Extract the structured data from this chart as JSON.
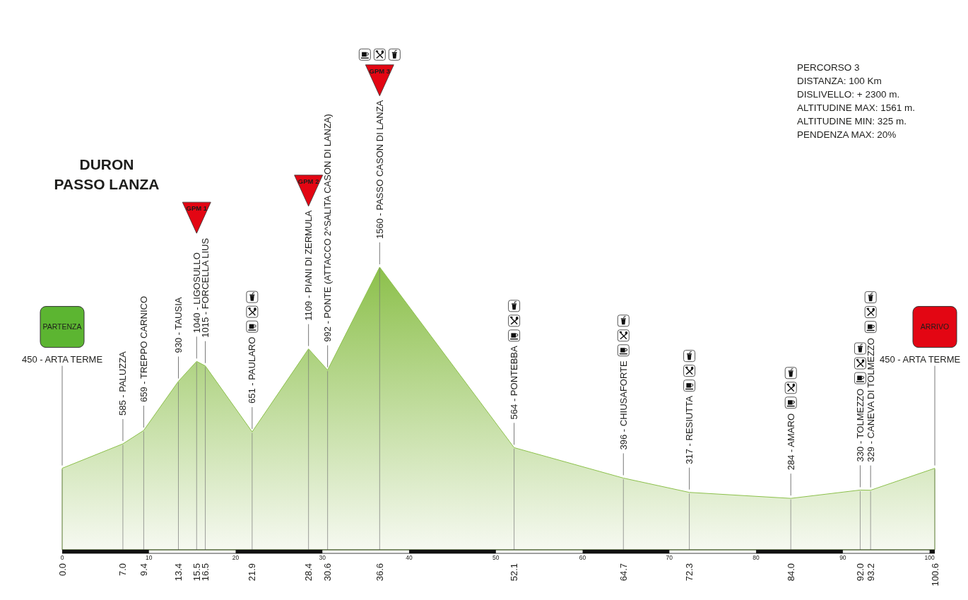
{
  "chart_data": [
    {
      "type": "area",
      "title": "DURON",
      "subtitle": "PASSO LANZA",
      "x": [
        0,
        7,
        9.4,
        13.4,
        15.5,
        16.5,
        21.9,
        28.4,
        30.6,
        36.6,
        52.1,
        64.7,
        72.3,
        84,
        92,
        93.2,
        100.6
      ],
      "series": [
        {
          "color": "#8cc04b",
          "values": [
            450,
            585,
            659,
            930,
            1040,
            1015,
            651,
            1109,
            992,
            1560,
            564,
            396,
            317,
            284,
            330,
            329,
            450
          ],
          "value_labels": [
            "450 - ARTA TERME",
            "585 - PALUZZA",
            "659 - TREPPO CARNICO",
            "930 - TAUSIA",
            "1040 - LIGOSULLO",
            "1015 - FORCELLA LIUS",
            "651 - PAULARO",
            "1109 - PIANI DI ZERMULA",
            "992 - PONTE (ATTACCO 2^SALITA CASON DI LANZA)",
            "1560 - PASSO CASON DI LANZA",
            "564 - PONTEBBA",
            "396 - CHIUSAFORTE",
            "317 - RESIUTTA",
            "284 - AMARO",
            "330 - TOLMEZZO",
            "329 - CANEVA DI TOLMEZZO",
            "450 - ARTA TERME"
          ]
        }
      ],
      "xlim": [
        0,
        100.6
      ],
      "xticks": [
        0,
        10,
        20,
        30,
        40,
        50,
        60,
        70,
        80,
        90,
        100
      ],
      "tick_labels": "x",
      "ref_lines": [
        {
          "axis": "x",
          "value": 0,
          "label": "0.0",
          "color": "#777777"
        },
        {
          "axis": "x",
          "value": 7,
          "label": "7.0",
          "color": "#777777"
        },
        {
          "axis": "x",
          "value": 9.4,
          "label": "9.4",
          "color": "#777777"
        },
        {
          "axis": "x",
          "value": 13.4,
          "label": "13.4",
          "color": "#777777"
        },
        {
          "axis": "x",
          "value": 15.5,
          "label": "15.5",
          "color": "#777777"
        },
        {
          "axis": "x",
          "value": 16.5,
          "label": "16.5",
          "color": "#777777"
        },
        {
          "axis": "x",
          "value": 21.9,
          "label": "21.9",
          "color": "#777777"
        },
        {
          "axis": "x",
          "value": 28.4,
          "label": "28.4",
          "color": "#777777"
        },
        {
          "axis": "x",
          "value": 30.6,
          "label": "30.6",
          "color": "#777777"
        },
        {
          "axis": "x",
          "value": 36.6,
          "label": "36.6",
          "color": "#777777"
        },
        {
          "axis": "x",
          "value": 52.1,
          "label": "52.1",
          "color": "#777777"
        },
        {
          "axis": "x",
          "value": 64.7,
          "label": "64.7",
          "color": "#777777"
        },
        {
          "axis": "x",
          "value": 72.3,
          "label": "72.3",
          "color": "#777777"
        },
        {
          "axis": "x",
          "value": 84,
          "label": "84.0",
          "color": "#777777"
        },
        {
          "axis": "x",
          "value": 92,
          "label": "92.0",
          "color": "#777777"
        },
        {
          "axis": "x",
          "value": 93.2,
          "label": "93.2",
          "color": "#777777"
        },
        {
          "axis": "x",
          "value": 100.6,
          "label": "100.6",
          "color": "#777777"
        }
      ],
      "annotations": [
        "PARTENZA",
        "GPM 1",
        "GPM 2",
        "GPM 3",
        "ARRIVO"
      ]
    },
    {
      "type": "other",
      "title": "PERCORSO 3",
      "annotations": [
        "DISTANZA: 100 Km",
        "DISLIVELLO: + 2300 m.",
        "ALTITUDINE MAX: 1561 m.",
        "ALTITUDINE MIN: 325 m.",
        "PENDENZA MAX: 20%"
      ]
    }
  ]
}
